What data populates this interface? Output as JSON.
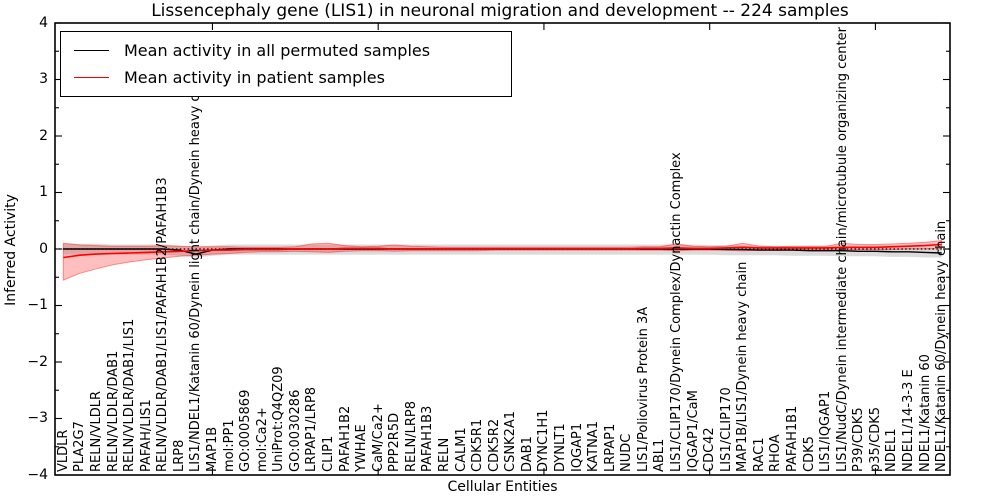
{
  "title": "Lissencephaly gene (LIS1) in neuronal migration and development -- 224 samples",
  "axes": {
    "ylabel": "Inferred Activity",
    "xlabel": "Cellular Entities",
    "ytick_labels": [
      "4",
      "3",
      "2",
      "1",
      "0",
      "−1",
      "−2",
      "−3",
      "−4"
    ]
  },
  "legend": {
    "entries": [
      {
        "label": "Mean activity in all permuted samples",
        "color": "#000000"
      },
      {
        "label": "Mean activity in patient samples",
        "color": "#ff0000"
      }
    ]
  },
  "chart_data": {
    "type": "line",
    "title": "Lissencephaly gene (LIS1) in neuronal migration and development -- 224 samples",
    "xlabel": "Cellular Entities",
    "ylabel": "Inferred Activity",
    "ylim": [
      -4,
      4
    ],
    "grid": false,
    "legend_position": "upper left",
    "ytick_values": [
      4,
      3,
      2,
      1,
      0,
      -1,
      -2,
      -3,
      -4
    ],
    "ytick_minor_step": 0.5,
    "x_major_tick_indices": [
      9,
      19,
      29,
      39,
      49
    ],
    "reference_line": {
      "y": 0,
      "style": "dotted",
      "color": "#000000"
    },
    "categories": [
      "VLDLR",
      "PLA2G7",
      "RELN/VLDLR",
      "RELN/VLDLR/DAB1",
      "RELN/VLDLR/DAB1/LIS1",
      "PAFAH/LIS1",
      "RELN/VLDLR/DAB1/LIS1/PAFAH1B2/PAFAH1B3",
      "LRP8",
      "LIS1/NDEL1/Katanin 60/Dynein light chain/Dynein heavy chain",
      "MAP1B",
      "mol:PP1",
      "GO:0005869",
      "mol:Ca2+",
      "UniProt:Q4QZ09",
      "GO:0030286",
      "LRPAP1/LRP8",
      "CLIP1",
      "PAFAH1B2",
      "YWHAE",
      "CaM/Ca2+",
      "PPP2R5D",
      "RELN/LRP8",
      "PAFAH1B3",
      "RELN",
      "CALM1",
      "CDK5R1",
      "CDK5R2",
      "CSNK2A1",
      "DAB1",
      "DYNC1H1",
      "DYNLT1",
      "IQGAP1",
      "KATNA1",
      "LRPAP1",
      "NUDC",
      "LIS1/Poliovirus Protein 3A",
      "ABL1",
      "LIS1/CLIP170/Dynein Complex/Dynactin Complex",
      "IQGAP1/CaM",
      "CDC42",
      "LIS1/CLIP170",
      "MAP1B/LIS1/Dynein heavy chain",
      "RAC1",
      "RHOA",
      "PAFAH1B1",
      "CDK5",
      "LIS1/IQGAP1",
      "LIS1/NudC/Dynein intermediate chain/microtubule organizing center",
      "P39/CDK5",
      "p35/CDK5",
      "NDEL1",
      "NDEL1/14-3-3 E",
      "NDEL1/Katanin 60",
      "NDEL1/Katanin 60/Dynein heavy chain"
    ],
    "series": [
      {
        "name": "Mean activity in all permuted samples",
        "color": "#000000",
        "values": [
          0,
          0,
          0,
          0,
          0,
          0,
          0,
          -0.02,
          -0.09,
          -0.02,
          0,
          0,
          0,
          0,
          0,
          0,
          0,
          0,
          0,
          0,
          0,
          0,
          0,
          0,
          0,
          0,
          0,
          0,
          0,
          0,
          0,
          0,
          0,
          0,
          0,
          0,
          0,
          0,
          0,
          0,
          -0.01,
          -0.01,
          -0.02,
          -0.02,
          -0.02,
          -0.03,
          -0.03,
          -0.03,
          -0.04,
          -0.04,
          -0.05,
          -0.05,
          -0.06,
          -0.07
        ]
      },
      {
        "name": "Mean activity in patient samples",
        "color": "#ff0000",
        "values": [
          -0.15,
          -0.11,
          -0.09,
          -0.08,
          -0.07,
          -0.06,
          -0.05,
          -0.04,
          -0.03,
          -0.02,
          -0.02,
          -0.01,
          -0.01,
          -0.01,
          0,
          0,
          0,
          0.01,
          0.01,
          0.01,
          0,
          0,
          0,
          0,
          0,
          0,
          0,
          0,
          0,
          0,
          0,
          0,
          0,
          0,
          0,
          0.01,
          0.01,
          0.02,
          0.01,
          0.01,
          0.02,
          0.03,
          0.02,
          0.02,
          0.02,
          0.02,
          0.02,
          0.03,
          0.03,
          0.03,
          0.04,
          0.05,
          0.06,
          0.08
        ]
      }
    ],
    "bands": [
      {
        "name": "permuted-samples-range",
        "color": "#aaaaaa",
        "fill_opacity": 0.42,
        "stroke_opacity": 0,
        "upper": [
          0.1,
          0.09,
          0.09,
          0.08,
          0.08,
          0.08,
          0.08,
          0.06,
          0.04,
          0.06,
          0.08,
          0.08,
          0.08,
          0.08,
          0.08,
          0.08,
          0.08,
          0.08,
          0.08,
          0.08,
          0.08,
          0.08,
          0.08,
          0.08,
          0.08,
          0.08,
          0.08,
          0.08,
          0.08,
          0.08,
          0.08,
          0.08,
          0.08,
          0.08,
          0.08,
          0.08,
          0.08,
          0.08,
          0.08,
          0.07,
          0.07,
          0.06,
          0.06,
          0.06,
          0.05,
          0.05,
          0.05,
          0.04,
          0.04,
          0.03,
          0.03,
          0.02,
          0.02,
          0.01
        ],
        "lower": [
          -0.1,
          -0.1,
          -0.1,
          -0.1,
          -0.1,
          -0.1,
          -0.1,
          -0.12,
          -0.15,
          -0.12,
          -0.1,
          -0.1,
          -0.1,
          -0.1,
          -0.1,
          -0.1,
          -0.1,
          -0.1,
          -0.1,
          -0.1,
          -0.1,
          -0.1,
          -0.1,
          -0.1,
          -0.1,
          -0.1,
          -0.1,
          -0.1,
          -0.1,
          -0.1,
          -0.1,
          -0.1,
          -0.1,
          -0.1,
          -0.1,
          -0.1,
          -0.1,
          -0.1,
          -0.1,
          -0.1,
          -0.11,
          -0.11,
          -0.11,
          -0.11,
          -0.12,
          -0.12,
          -0.12,
          -0.13,
          -0.13,
          -0.13,
          -0.14,
          -0.14,
          -0.15,
          -0.15
        ]
      },
      {
        "name": "patient-samples-range",
        "color": "#ff0000",
        "fill_opacity": 0.25,
        "stroke_opacity": 0.4,
        "upper": [
          0.1,
          0.07,
          0.06,
          0.05,
          0.05,
          0.05,
          0.06,
          0.05,
          0.04,
          0.04,
          0.04,
          0.03,
          0.03,
          0.03,
          0.04,
          0.09,
          0.1,
          0.06,
          0.04,
          0.05,
          0.07,
          0.05,
          0.04,
          0.03,
          0.03,
          0.03,
          0.03,
          0.03,
          0.03,
          0.03,
          0.03,
          0.03,
          0.03,
          0.03,
          0.03,
          0.04,
          0.04,
          0.09,
          0.05,
          0.04,
          0.05,
          0.1,
          0.05,
          0.04,
          0.05,
          0.05,
          0.05,
          0.1,
          0.08,
          0.08,
          0.09,
          0.1,
          0.12,
          0.15
        ],
        "lower": [
          -0.55,
          -0.43,
          -0.35,
          -0.28,
          -0.23,
          -0.19,
          -0.16,
          -0.13,
          -0.11,
          -0.09,
          -0.08,
          -0.06,
          -0.05,
          -0.05,
          -0.04,
          -0.05,
          -0.06,
          -0.04,
          -0.03,
          -0.03,
          -0.04,
          -0.03,
          -0.03,
          -0.03,
          -0.03,
          -0.03,
          -0.02,
          -0.02,
          -0.02,
          -0.02,
          -0.02,
          -0.02,
          -0.02,
          -0.02,
          -0.02,
          -0.02,
          -0.02,
          -0.03,
          -0.02,
          -0.02,
          -0.02,
          -0.03,
          -0.02,
          -0.02,
          -0.02,
          -0.01,
          -0.01,
          -0.02,
          -0.01,
          -0.01,
          -0.01,
          0,
          0,
          0.01
        ]
      }
    ]
  }
}
